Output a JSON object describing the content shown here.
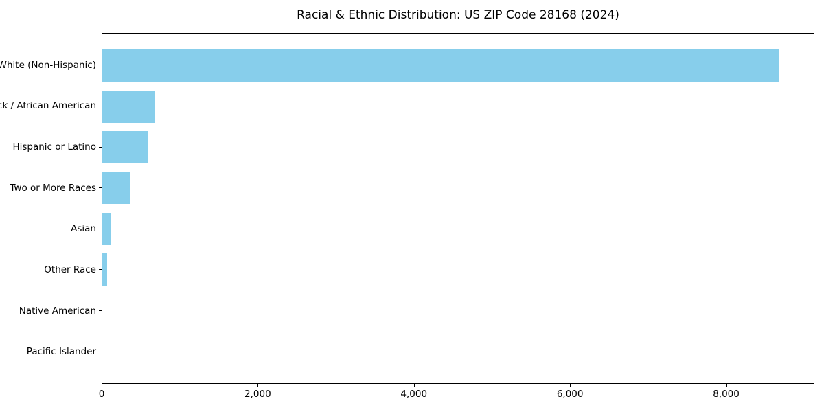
{
  "figure": {
    "background": "#ffffff",
    "text_color": "#000000",
    "spine_color": "#000000"
  },
  "chart_data": {
    "type": "bar",
    "orientation": "horizontal",
    "title": "Racial & Ethnic Distribution: US ZIP Code 28168 (2024)",
    "xlabel": "",
    "ylabel": "",
    "categories": [
      "White (Non-Hispanic)",
      "Black / African American",
      "Hispanic or Latino",
      "Two or More Races",
      "Asian",
      "Other Race",
      "Native American",
      "Pacific Islander"
    ],
    "values": [
      8690,
      680,
      590,
      360,
      110,
      60,
      0,
      0
    ],
    "xlim": [
      0,
      9130
    ],
    "x_ticks": [
      0,
      2000,
      4000,
      6000,
      8000
    ],
    "x_tick_labels": [
      "0",
      "2,000",
      "4,000",
      "6,000",
      "8,000"
    ],
    "bar_color": "#87CEEB",
    "grid": false,
    "legend": "none"
  }
}
